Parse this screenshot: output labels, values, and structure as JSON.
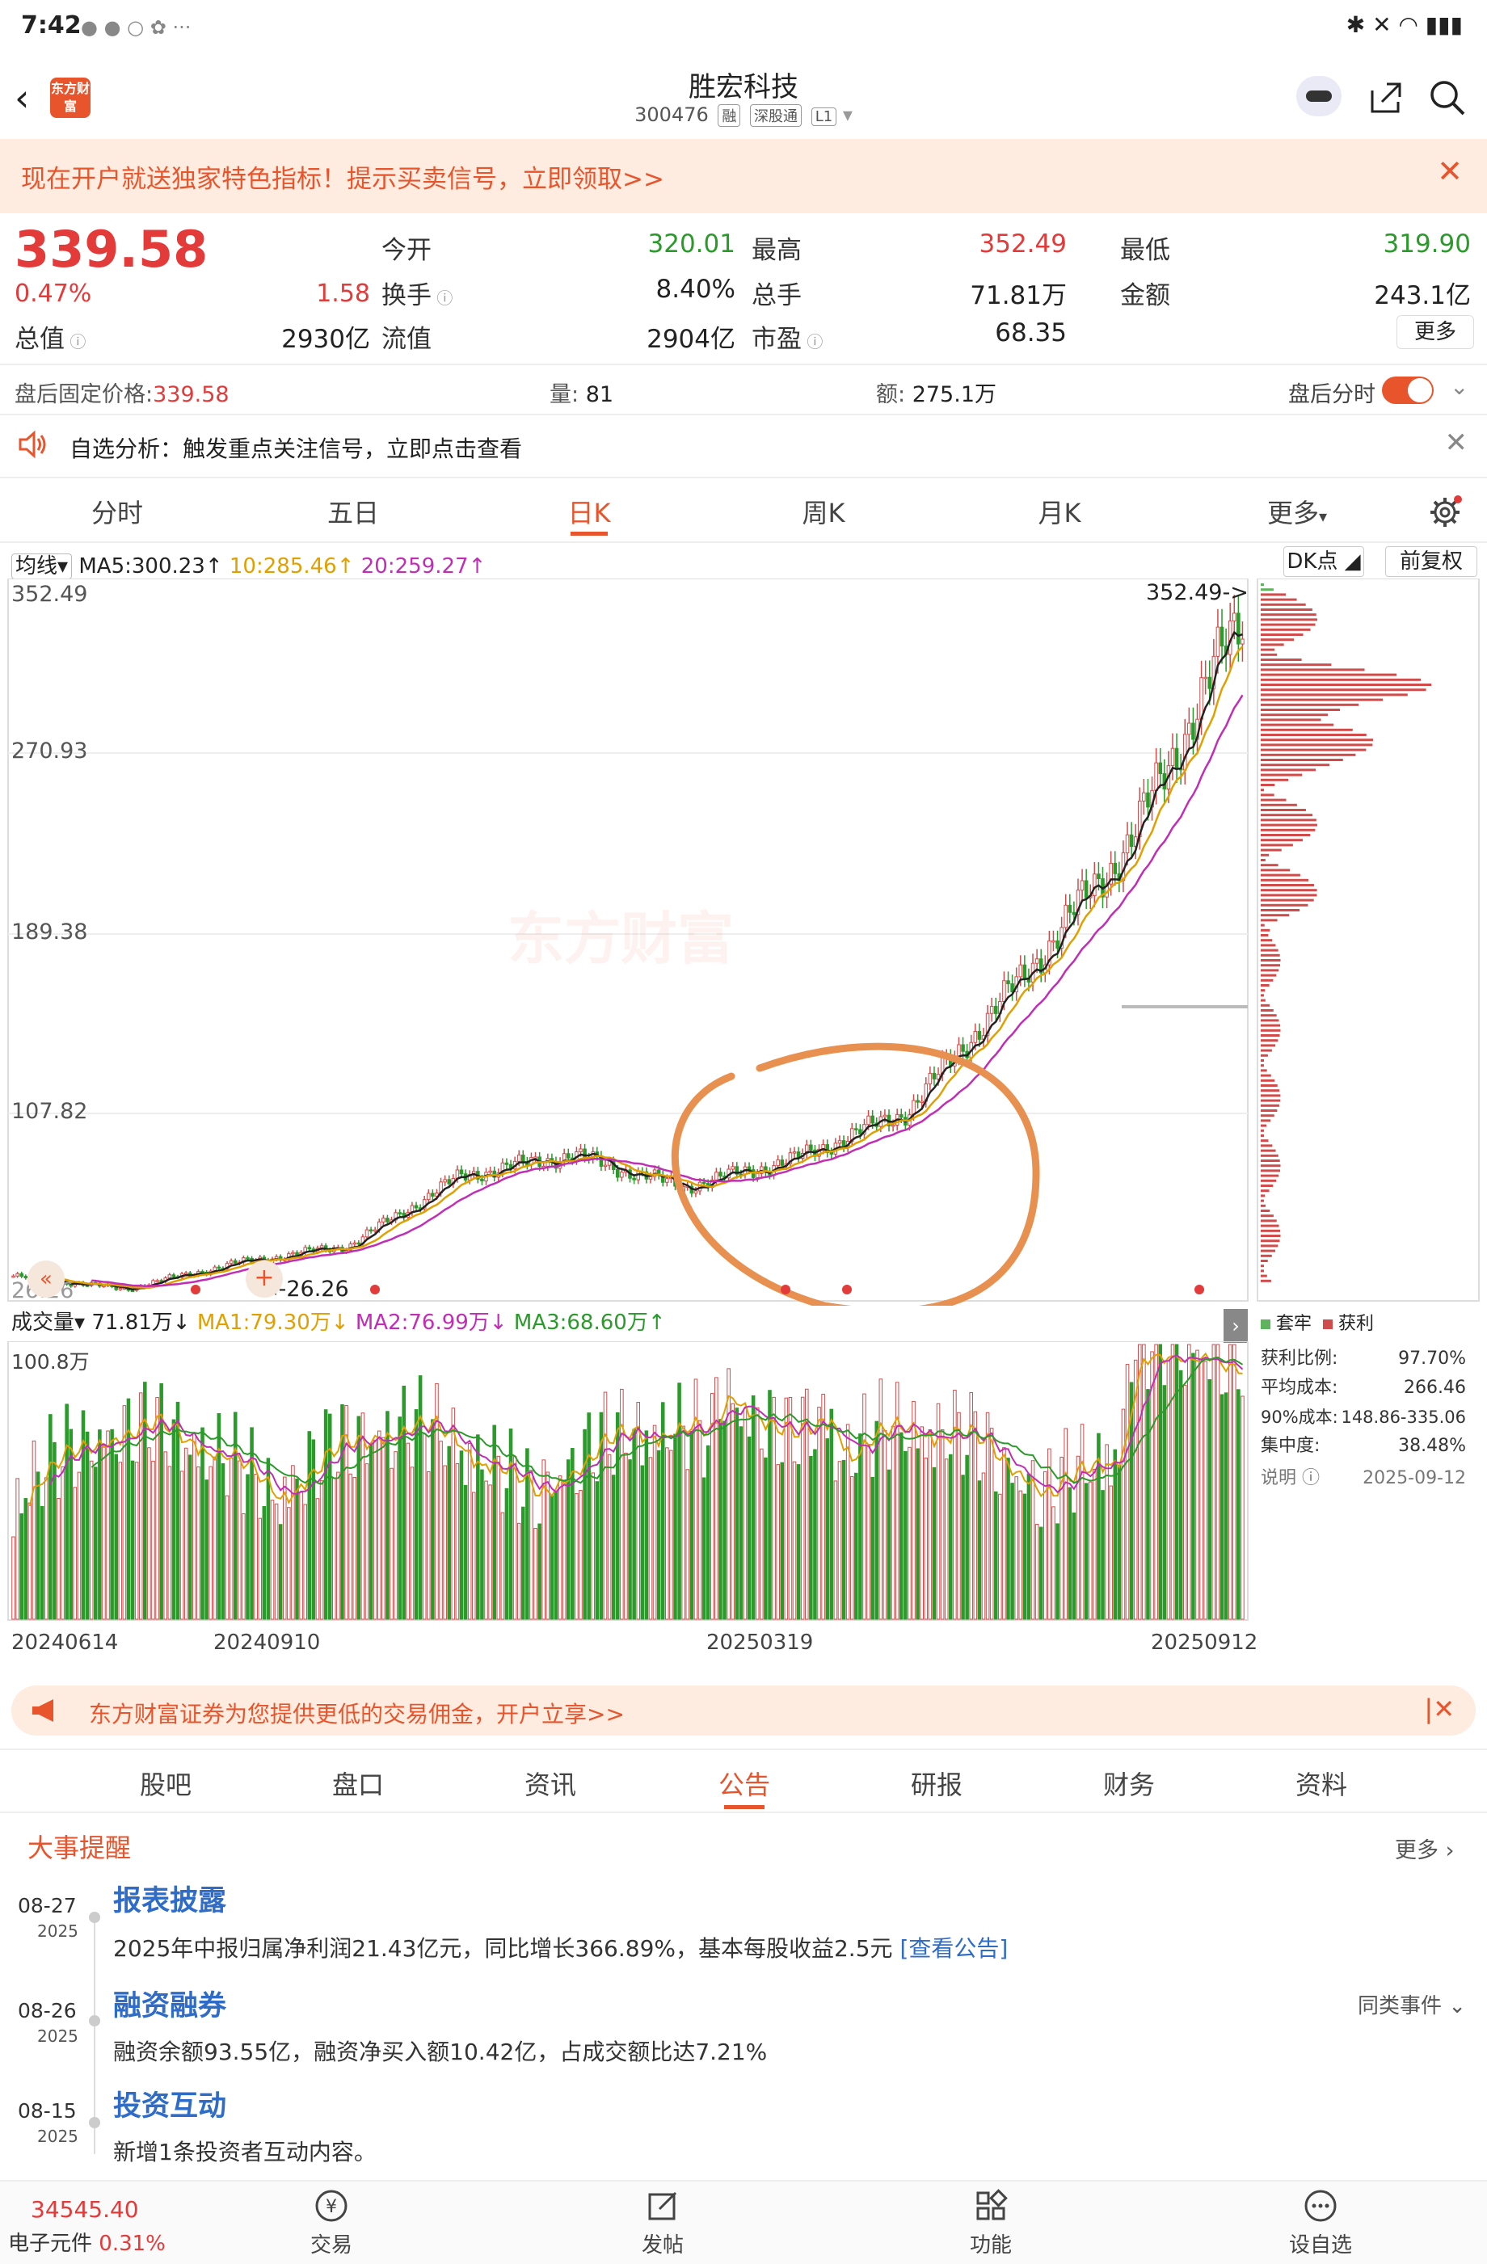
{
  "status": {
    "time": "7:42"
  },
  "header": {
    "title": "胜宏科技",
    "code": "300476",
    "tags": [
      "融",
      "深股通",
      "L1"
    ],
    "logo": "东方财富"
  },
  "promo": {
    "text": "现在开户就送独家特色指标！提示买卖信号，立即领取>>"
  },
  "quote": {
    "price": "339.58",
    "pct": "0.47%",
    "change": "1.58",
    "open_label": "今开",
    "open": "320.01",
    "high_label": "最高",
    "high": "352.49",
    "low_label": "最低",
    "low": "319.90",
    "turnover_label": "换手",
    "turnover": "8.40%",
    "volume_label": "总手",
    "volume": "71.81万",
    "amount_label": "金额",
    "amount": "243.1亿",
    "mcap_label": "总值",
    "mcap": "2930亿",
    "float_label": "流值",
    "float": "2904亿",
    "pe_label": "市盈",
    "pe": "68.35",
    "more": "更多"
  },
  "afterhours": {
    "price_label": "盘后固定价格:",
    "price": "339.58",
    "vol_label": "量:",
    "vol": "81",
    "amt_label": "额:",
    "amt": "275.1万",
    "toggle_label": "盘后分时"
  },
  "analysis": {
    "text": "自选分析：触发重点关注信号，立即点击查看"
  },
  "chart_tabs": [
    "分时",
    "五日",
    "日K",
    "周K",
    "月K",
    "更多"
  ],
  "ma_line": {
    "label": "均线",
    "ma5": "MA5:300.23↑",
    "ma10": "10:285.46↑",
    "ma20": "20:259.27↑",
    "dk": "DK点",
    "adjust": "前复权"
  },
  "price_axis": [
    "352.49",
    "270.93",
    "189.38",
    "107.82",
    "26.26"
  ],
  "price_annotations": {
    "high": "352.49->",
    "low": "<-26.26"
  },
  "vol_line": {
    "label": "成交量",
    "vol": "71.81万↓",
    "ma1": "MA1:79.30万↓",
    "ma2": "MA2:76.99万↓",
    "ma3": "MA3:68.60万↑",
    "max": "100.8万"
  },
  "dates": [
    "20240614",
    "20240910",
    "20250319",
    "20250912"
  ],
  "chips": {
    "legend_locked": "套牢",
    "legend_profit": "获利",
    "profit_ratio_label": "获利比例:",
    "profit_ratio": "97.70%",
    "avg_cost_label": "平均成本:",
    "avg_cost": "266.46",
    "cost90_label": "90%成本:",
    "cost90": "148.86-335.06",
    "concentration_label": "集中度:",
    "concentration": "38.48%",
    "note_label": "说明",
    "date": "2025-09-12"
  },
  "broker_banner": {
    "text": "东方财富证券为您提供更低的交易佣金，开户立享>>"
  },
  "info_tabs": [
    "股吧",
    "盘口",
    "资讯",
    "公告",
    "研报",
    "财务",
    "资料"
  ],
  "events": {
    "title": "大事提醒",
    "more": "更多",
    "similar": "同类事件",
    "items": [
      {
        "date": "08-27",
        "year": "2025",
        "title": "报表披露",
        "desc": "2025年中报归属净利润21.43亿元，同比增长366.89%，基本每股收益2.5元",
        "link": "[查看公告]"
      },
      {
        "date": "08-26",
        "year": "2025",
        "title": "融资融券",
        "desc": "融资余额93.55亿，融资净买入额10.42亿，占成交额比达7.21%",
        "link": ""
      },
      {
        "date": "08-15",
        "year": "2025",
        "title": "投资互动",
        "desc": "新增1条投资者互动内容。",
        "link": ""
      }
    ]
  },
  "bottom": {
    "index_value": "34545.40",
    "index_name": "电子元件",
    "index_pct": "0.31%",
    "nav": [
      "交易",
      "发帖",
      "功能",
      "设自选"
    ]
  },
  "watermark": "东方财富",
  "chart_data": {
    "type": "candlestick",
    "ylim": [
      26.26,
      352.49
    ],
    "x_ticks": [
      "20240614",
      "20240910",
      "20250319",
      "20250912"
    ],
    "close_trend": [
      {
        "x": "20240614",
        "y": 34
      },
      {
        "x": "20240910",
        "y": 28
      },
      {
        "x": "20241120",
        "y": 40
      },
      {
        "x": "20250110",
        "y": 48
      },
      {
        "x": "20250219",
        "y": 80
      },
      {
        "x": "20250319",
        "y": 90
      },
      {
        "x": "20250410",
        "y": 75
      },
      {
        "x": "20250520",
        "y": 88
      },
      {
        "x": "20250620",
        "y": 110
      },
      {
        "x": "20250720",
        "y": 170
      },
      {
        "x": "20250810",
        "y": 235
      },
      {
        "x": "20250912",
        "y": 339.58
      }
    ]
  }
}
